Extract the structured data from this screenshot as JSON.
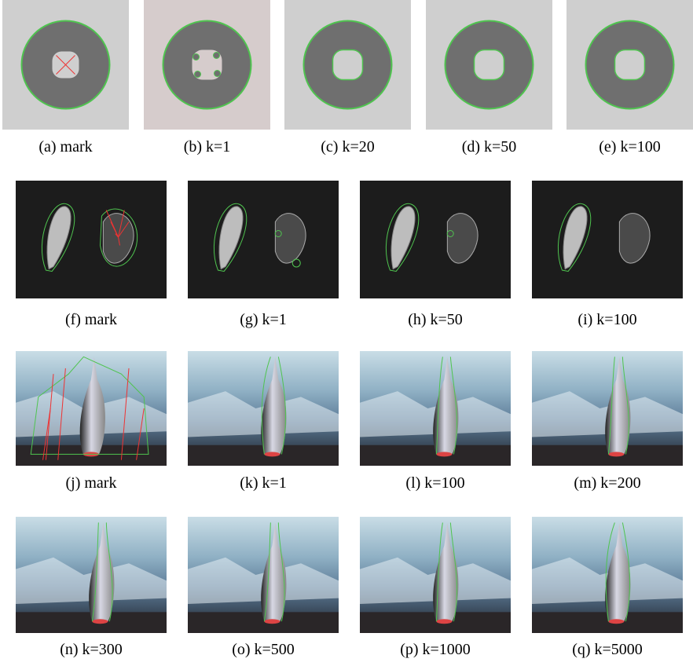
{
  "rows": [
    {
      "panels": [
        {
          "caption": "(a) mark"
        },
        {
          "caption": "(b) k=1"
        },
        {
          "caption": "(c) k=20"
        },
        {
          "caption": "(d) k=50"
        },
        {
          "caption": "(e) k=100"
        }
      ]
    },
    {
      "panels": [
        {
          "caption": "(f) mark"
        },
        {
          "caption": "(g) k=1"
        },
        {
          "caption": "(h) k=50"
        },
        {
          "caption": "(i) k=100"
        }
      ]
    },
    {
      "panels": [
        {
          "caption": "(j) mark"
        },
        {
          "caption": "(k) k=1"
        },
        {
          "caption": "(l) k=100"
        },
        {
          "caption": "(m) k=200"
        }
      ]
    },
    {
      "panels": [
        {
          "caption": "(n) k=300"
        },
        {
          "caption": "(o) k=500"
        },
        {
          "caption": "(p) k=1000"
        },
        {
          "caption": "(q) k=5000"
        }
      ]
    }
  ]
}
